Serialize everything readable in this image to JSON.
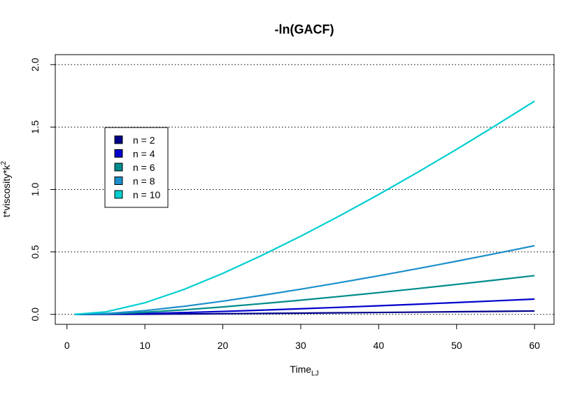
{
  "chart_data": {
    "type": "line",
    "title": "-ln(GACF)",
    "xlabel_main": "Time",
    "xlabel_sub": "LJ",
    "ylabel_main": "t*viscosity*k",
    "ylabel_sup": "2",
    "xlim": [
      -1.5,
      62.5
    ],
    "ylim": [
      -0.08,
      2.08
    ],
    "xticks": [
      0,
      10,
      20,
      30,
      40,
      50,
      60
    ],
    "yticks": [
      0.0,
      0.5,
      1.0,
      1.5,
      2.0
    ],
    "ytick_labels": [
      "0.0",
      "0.5",
      "1.0",
      "1.5",
      "2.0"
    ],
    "grid": "horizontal dotted",
    "legend_position": "upper-left",
    "series": [
      {
        "name": "n = 2",
        "color": "#00008B",
        "x": [
          1,
          5,
          10,
          15,
          20,
          25,
          30,
          35,
          40,
          45,
          50,
          55,
          60
        ],
        "y": [
          0.0,
          0.0003,
          0.0015,
          0.0032,
          0.0052,
          0.0074,
          0.0098,
          0.0124,
          0.0151,
          0.0179,
          0.0208,
          0.0239,
          0.027
        ]
      },
      {
        "name": "n = 4",
        "color": "#0000CD",
        "x": [
          1,
          5,
          10,
          15,
          20,
          25,
          30,
          35,
          40,
          45,
          50,
          55,
          60
        ],
        "y": [
          0.0,
          0.0014,
          0.0066,
          0.0143,
          0.0235,
          0.0338,
          0.0448,
          0.0565,
          0.0687,
          0.0814,
          0.0946,
          0.1082,
          0.1222
        ]
      },
      {
        "name": "n = 6",
        "color": "#008B8B",
        "x": [
          1,
          5,
          10,
          15,
          20,
          25,
          30,
          35,
          40,
          45,
          50,
          55,
          60
        ],
        "y": [
          0.0,
          0.0036,
          0.0168,
          0.0362,
          0.0596,
          0.0858,
          0.1137,
          0.1434,
          0.1744,
          0.2066,
          0.2401,
          0.2747,
          0.3103
        ]
      },
      {
        "name": "n = 8",
        "color": "#1B8FCB",
        "x": [
          1,
          5,
          10,
          15,
          20,
          25,
          30,
          35,
          40,
          45,
          50,
          55,
          60
        ],
        "y": [
          0.0,
          0.0064,
          0.0298,
          0.0642,
          0.1056,
          0.152,
          0.2015,
          0.2541,
          0.3091,
          0.3662,
          0.4256,
          0.4869,
          0.55
        ]
      },
      {
        "name": "n = 10",
        "color": "#00CED1",
        "x": [
          1,
          5,
          10,
          15,
          20,
          25,
          30,
          35,
          40,
          45,
          50,
          55,
          60
        ],
        "y": [
          0.0,
          0.0199,
          0.0926,
          0.1993,
          0.328,
          0.4721,
          0.6258,
          0.7893,
          0.96,
          1.1376,
          1.3218,
          1.5123,
          1.708
        ]
      }
    ]
  }
}
